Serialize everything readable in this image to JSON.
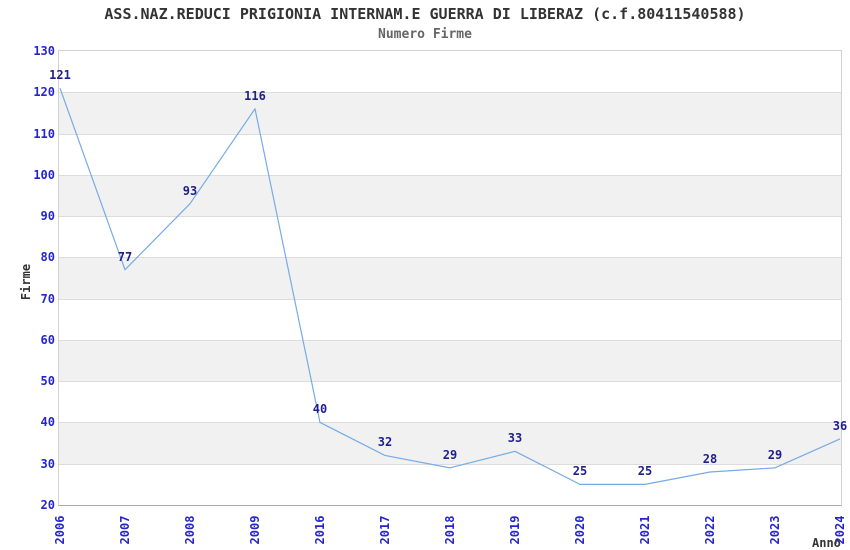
{
  "page": {
    "background": "#ffffff"
  },
  "chart_data": {
    "type": "line",
    "title": "ASS.NAZ.REDUCI PRIGIONIA INTERNAM.E GUERRA DI LIBERAZ (c.f.80411540588)",
    "subtitle": "Numero Firme",
    "xlabel": "Anno",
    "ylabel": "Firme",
    "categories": [
      "2006",
      "2007",
      "2008",
      "2009",
      "2016",
      "2017",
      "2018",
      "2019",
      "2020",
      "2021",
      "2022",
      "2023",
      "2024"
    ],
    "values": [
      121,
      77,
      93,
      116,
      40,
      32,
      29,
      33,
      25,
      25,
      28,
      29,
      36
    ],
    "ylim": [
      20,
      130
    ],
    "ytick_step": 10,
    "grid": true,
    "alternating_row_bands": true,
    "legend_position": "none",
    "value_labels_shown": true,
    "colors": {
      "line": "#77ABE4",
      "tick_label": "#2525CD",
      "value_label": "#1F1F8C",
      "band": "#F1F1F1",
      "gridline": "#DCDCDC",
      "plot_border": "#D2D2D2",
      "axis_line": "#A9A9A9",
      "title": "#333333",
      "subtitle": "#666666",
      "axis_title": "#333333"
    }
  }
}
